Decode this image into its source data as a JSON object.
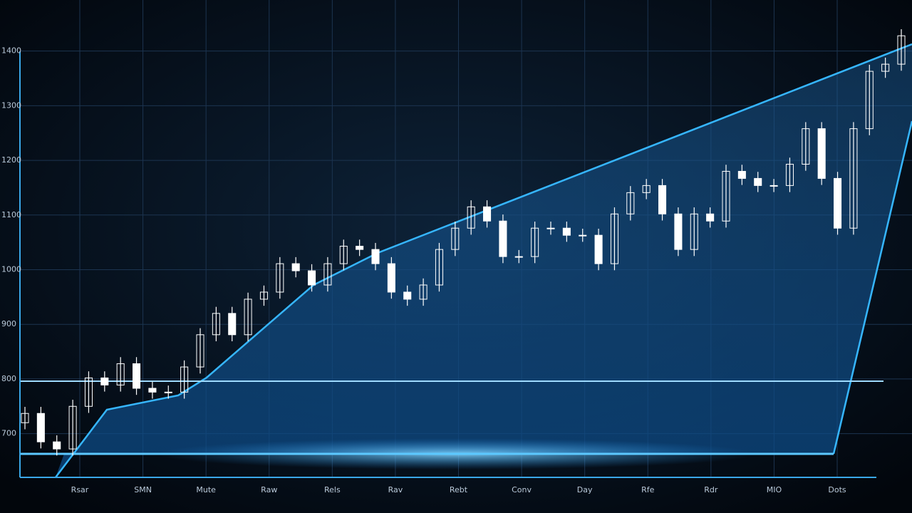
{
  "chart_data": {
    "type": "candlestick",
    "x_labels": [
      "Rsar",
      "SMN",
      "Mute",
      "Raw",
      "Rels",
      "Rav",
      "Rebt",
      "Conv",
      "Day",
      "Rfe",
      "Rdr",
      "MIO",
      "Dots"
    ],
    "open": [
      720,
      737,
      685,
      672,
      750,
      802,
      789,
      828,
      783,
      776,
      776,
      822,
      881,
      920,
      881,
      946,
      959,
      1011,
      998,
      972,
      1011,
      1043,
      1037,
      1011,
      959,
      946,
      972,
      1037,
      1076,
      1115,
      1089,
      1024,
      1024,
      1076,
      1076,
      1063,
      1063,
      1011,
      1102,
      1141,
      1154,
      1102,
      1037,
      1102,
      1089,
      1180,
      1167,
      1154,
      1154,
      1193,
      1258,
      1167,
      1076,
      1258,
      1363,
      1376
    ],
    "high": [
      749,
      749,
      697,
      762,
      814,
      814,
      840,
      840,
      795,
      788,
      834,
      893,
      932,
      932,
      958,
      971,
      1023,
      1023,
      1010,
      1023,
      1055,
      1055,
      1049,
      1023,
      971,
      984,
      1049,
      1088,
      1127,
      1127,
      1101,
      1036,
      1088,
      1088,
      1088,
      1075,
      1075,
      1114,
      1153,
      1166,
      1166,
      1114,
      1114,
      1114,
      1192,
      1192,
      1179,
      1166,
      1205,
      1270,
      1270,
      1179,
      1270,
      1375,
      1388,
      1440
    ],
    "low": [
      708,
      673,
      660,
      660,
      738,
      777,
      777,
      771,
      764,
      764,
      764,
      810,
      869,
      869,
      869,
      934,
      947,
      986,
      960,
      960,
      999,
      1025,
      999,
      947,
      934,
      934,
      960,
      1025,
      1064,
      1077,
      1012,
      1012,
      1012,
      1064,
      1051,
      1051,
      999,
      999,
      1090,
      1129,
      1090,
      1025,
      1025,
      1077,
      1077,
      1155,
      1142,
      1142,
      1142,
      1181,
      1155,
      1064,
      1064,
      1246,
      1351,
      1364
    ],
    "close": [
      737,
      685,
      672,
      750,
      802,
      789,
      828,
      783,
      776,
      776,
      822,
      881,
      920,
      881,
      946,
      959,
      1011,
      998,
      972,
      1011,
      1043,
      1037,
      1011,
      959,
      946,
      972,
      1037,
      1076,
      1115,
      1089,
      1024,
      1024,
      1076,
      1076,
      1063,
      1063,
      1011,
      1102,
      1141,
      1154,
      1102,
      1037,
      1102,
      1089,
      1180,
      1167,
      1154,
      1154,
      1193,
      1258,
      1167,
      1076,
      1258,
      1363,
      1376,
      1428
    ],
    "color": "#ffffff",
    "ylim": [
      620,
      1440
    ],
    "yticks": [
      700,
      800,
      900,
      1000,
      1100,
      1200,
      1300,
      1400
    ],
    "grid": true
  }
}
